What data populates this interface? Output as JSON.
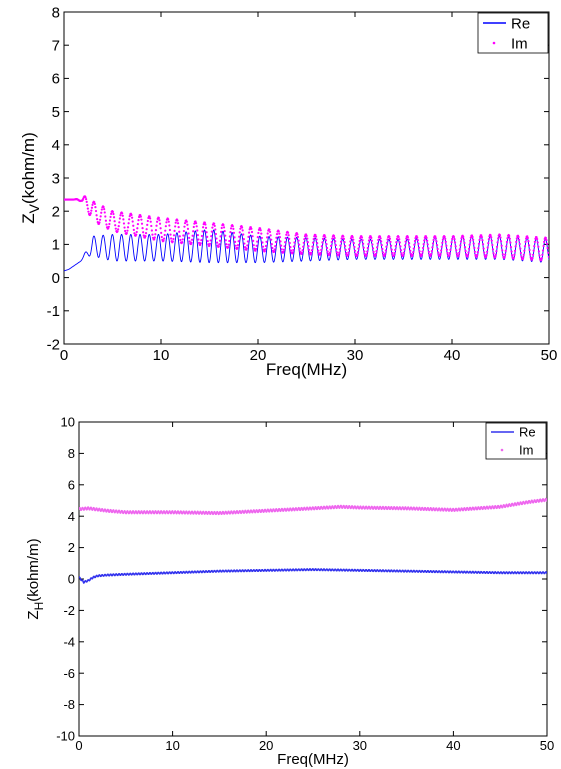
{
  "chart_data": [
    {
      "type": "line",
      "title": "",
      "xlabel": "Freq(MHz)",
      "ylabel_main": "Z",
      "ylabel_sub": "V",
      "ylabel_rest": "(kohm/m)",
      "xlim": [
        0,
        50
      ],
      "ylim": [
        -2,
        8
      ],
      "xticks": [
        0,
        10,
        20,
        30,
        40,
        50
      ],
      "yticks": [
        -2,
        -1,
        0,
        1,
        2,
        3,
        4,
        5,
        6,
        7,
        8
      ],
      "grid": false,
      "legend_position": "top-right",
      "series": [
        {
          "name": "Re",
          "style": "solid",
          "color": "#0000ff",
          "x": [
            0,
            0.5,
            1,
            1.5,
            2,
            2.5,
            3,
            5,
            10,
            15,
            20,
            25,
            30,
            35,
            40,
            45,
            50
          ],
          "y": [
            0.2,
            0.25,
            0.35,
            0.45,
            0.6,
            0.8,
            0.95,
            0.9,
            0.9,
            0.95,
            0.85,
            0.85,
            0.85,
            0.85,
            0.9,
            0.9,
            0.8
          ],
          "oscillation_amplitude": [
            0,
            0,
            0,
            0,
            0.05,
            0.15,
            0.3,
            0.4,
            0.4,
            0.5,
            0.4,
            0.35,
            0.3,
            0.3,
            0.35,
            0.35,
            0.35
          ],
          "oscillation_period": 0.95
        },
        {
          "name": "Im",
          "style": "dotted",
          "color": "#ff00ff",
          "x": [
            0,
            1,
            1.8,
            2,
            2.5,
            3,
            5,
            10,
            15,
            20,
            25,
            30,
            35,
            40,
            45,
            50
          ],
          "y": [
            2.35,
            2.35,
            2.35,
            2.3,
            2.2,
            2.0,
            1.7,
            1.45,
            1.3,
            1.15,
            1.0,
            0.95,
            0.95,
            0.95,
            0.95,
            0.85
          ],
          "oscillation_amplitude": [
            0,
            0,
            0.05,
            0.15,
            0.25,
            0.3,
            0.3,
            0.35,
            0.35,
            0.35,
            0.3,
            0.3,
            0.3,
            0.3,
            0.35,
            0.35
          ],
          "oscillation_period": 0.95
        }
      ]
    },
    {
      "type": "line",
      "title": "",
      "xlabel": "Freq(MHz)",
      "ylabel_main": "Z",
      "ylabel_sub": "H",
      "ylabel_rest": "(kohm/m)",
      "xlim": [
        0,
        50
      ],
      "ylim": [
        -10,
        10
      ],
      "xticks": [
        0,
        10,
        20,
        30,
        40,
        50
      ],
      "yticks": [
        -10,
        -8,
        -6,
        -4,
        -2,
        0,
        2,
        4,
        6,
        8,
        10
      ],
      "grid": false,
      "legend_position": "top-right",
      "series": [
        {
          "name": "Re",
          "style": "solid",
          "color": "#3333ee",
          "x": [
            0,
            0.5,
            1,
            1.5,
            2,
            3,
            5,
            10,
            15,
            20,
            25,
            30,
            35,
            40,
            45,
            50
          ],
          "y": [
            0.1,
            -0.2,
            -0.1,
            0.1,
            0.2,
            0.25,
            0.3,
            0.4,
            0.5,
            0.55,
            0.6,
            0.55,
            0.5,
            0.45,
            0.4,
            0.4
          ],
          "oscillation_amplitude": [
            0.05,
            0.05,
            0.05,
            0.05,
            0.05,
            0.05,
            0.05,
            0.05,
            0.05,
            0.05,
            0.05,
            0.05,
            0.05,
            0.05,
            0.05,
            0.05
          ],
          "oscillation_period": 0.3
        },
        {
          "name": "Im",
          "style": "dotted",
          "color": "#ee66ee",
          "x": [
            0,
            1,
            3,
            5,
            10,
            15,
            20,
            25,
            28,
            30,
            35,
            40,
            45,
            48,
            50
          ],
          "y": [
            4.45,
            4.5,
            4.35,
            4.25,
            4.25,
            4.2,
            4.35,
            4.5,
            4.6,
            4.55,
            4.5,
            4.4,
            4.6,
            4.9,
            5.05
          ],
          "oscillation_amplitude": [
            0.08,
            0.08,
            0.08,
            0.08,
            0.08,
            0.08,
            0.08,
            0.08,
            0.08,
            0.08,
            0.08,
            0.08,
            0.08,
            0.08,
            0.08
          ],
          "oscillation_period": 0.3
        }
      ]
    }
  ]
}
